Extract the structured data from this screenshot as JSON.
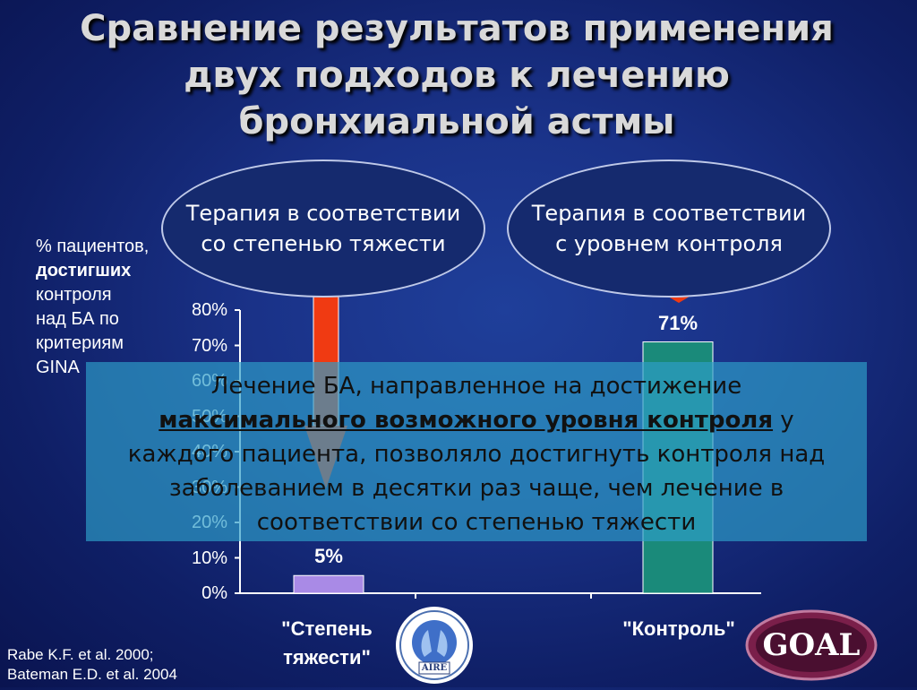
{
  "title_lines": [
    "Сравнение результатов применения",
    "двух подходов к лечению",
    "бронхиальной астмы"
  ],
  "ellipses": {
    "left": {
      "line1": "Терапия в соответствии",
      "line2": "со степенью тяжести"
    },
    "right": {
      "line1": "Терапия в соответствии",
      "line2": "с уровнем контроля"
    }
  },
  "y_axis_label": {
    "line1": "% пациентов,",
    "line2_bold": "достигших",
    "line3": "контроля",
    "line4": "над БА по",
    "line5": "критериям",
    "line6": "GINA"
  },
  "overlay": {
    "part1": "Лечение БА, направленное на достижение",
    "highlight": "максимального возможного уровня контроля",
    "part2": " у",
    "part3": "каждого пациента, позволяло достигнуть контроля над",
    "part4": "заболеванием в десятки раз чаще, чем лечение в",
    "part5": "соответствии со степенью тяжести"
  },
  "citations": [
    "Rabe K.F. et al.  2000;",
    "Bateman E.D. et al. 2004"
  ],
  "logos": {
    "aire_text": "AIRE",
    "goal_text": "GOAL"
  },
  "colors": {
    "bar_left": "#a98ae6",
    "bar_right": "#1a8a7a",
    "arrow": "#f03a12",
    "overlay": "#2e9ec8"
  },
  "chart_data": {
    "type": "bar",
    "categories": [
      "\"Степень тяжести\"",
      "\"Контроль\""
    ],
    "values": [
      5,
      71
    ],
    "data_labels": [
      "5%",
      "71%"
    ],
    "y_ticks": [
      "0%",
      "10%",
      "20%",
      "30%",
      "40%",
      "50%",
      "60%",
      "70%",
      "80%"
    ],
    "ylim": [
      0,
      80
    ],
    "ylabel": "% пациентов, достигших контроля над БА по критериям GINA",
    "title": ""
  }
}
